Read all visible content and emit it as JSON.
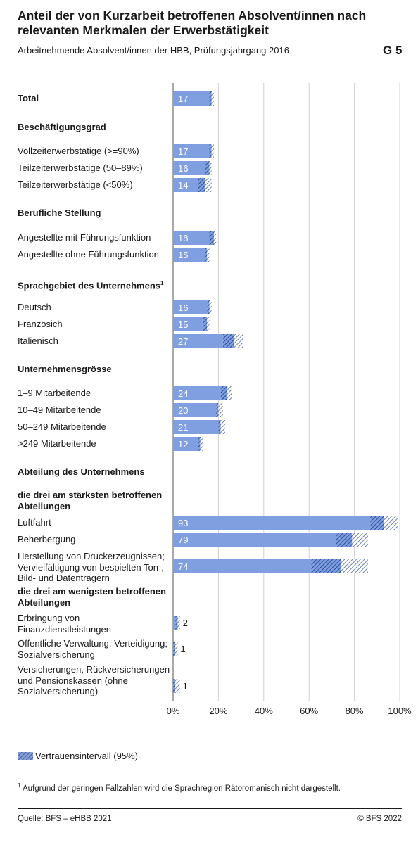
{
  "title": "Anteil der von Kurzarbeit betroffenen Absolvent/innen nach relevanten Merkmalen der Erwerbstätigkeit",
  "subtitle": "Arbeitnehmende Absolvent/innen der HBB, Prüfungsjahrgang 2016",
  "code": "G 5",
  "legend_label": "Vertrauensintervall (95%)",
  "footnote_mark": "1",
  "footnote": "Aufgrund der geringen Fallzahlen wird die Sprachregion Rätoromanisch nicht dargestellt.",
  "source": "Quelle: BFS – eHBB 2021",
  "copyright": "© BFS 2022",
  "colors": {
    "bar": "#7f9fe0",
    "ci": "#3d5fb3",
    "ci_light": "#9aa8c8",
    "grid": "#d0d0d0"
  },
  "chart_data": {
    "type": "bar",
    "orientation": "horizontal",
    "xlim": [
      0,
      100
    ],
    "x_ticks": [
      "0%",
      "20%",
      "40%",
      "60%",
      "80%",
      "100%"
    ],
    "grid": true,
    "legend": "bottom-left",
    "rows": [
      {
        "kind": "cat",
        "label": "Total",
        "value": 17,
        "ci": [
          16,
          18
        ],
        "bold": true
      },
      {
        "kind": "header",
        "label": "Beschäftigungsgrad"
      },
      {
        "kind": "cat",
        "label": "Vollzeiterwerbstätige (>=90%)",
        "value": 17,
        "ci": [
          16,
          18
        ]
      },
      {
        "kind": "cat",
        "label": "Teilzeiterwerbstätige (50–89%)",
        "value": 16,
        "ci": [
          14,
          17
        ]
      },
      {
        "kind": "cat",
        "label": "Teilzeiterwerbstätige (<50%)",
        "value": 14,
        "ci": [
          11,
          17
        ]
      },
      {
        "kind": "header",
        "label": "Berufliche Stellung"
      },
      {
        "kind": "cat",
        "label": "Angestellte mit Führungsfunktion",
        "value": 18,
        "ci": [
          16,
          19
        ]
      },
      {
        "kind": "cat",
        "label": "Angestellte ohne Führungsfunktion",
        "value": 15,
        "ci": [
          14,
          16
        ]
      },
      {
        "kind": "header",
        "label": "Sprachgebiet des Unternehmens",
        "sup": "1"
      },
      {
        "kind": "cat",
        "label": "Deutsch",
        "value": 16,
        "ci": [
          15,
          17
        ]
      },
      {
        "kind": "cat",
        "label": "Französich",
        "value": 15,
        "ci": [
          13,
          16
        ]
      },
      {
        "kind": "cat",
        "label": "Italienisch",
        "value": 27,
        "ci": [
          22,
          31
        ]
      },
      {
        "kind": "header",
        "label": "Unternehmensgrösse"
      },
      {
        "kind": "cat",
        "label": "1–9 Mitarbeitende",
        "value": 24,
        "ci": [
          21,
          26
        ]
      },
      {
        "kind": "cat",
        "label": "10–49 Mitarbeitende",
        "value": 20,
        "ci": [
          19,
          22
        ]
      },
      {
        "kind": "cat",
        "label": "50–249 Mitarbeitende",
        "value": 21,
        "ci": [
          20,
          23
        ]
      },
      {
        "kind": "cat",
        "label": ">249 Mitarbeitende",
        "value": 12,
        "ci": [
          11,
          13
        ]
      },
      {
        "kind": "header",
        "label": "Abteilung des Unternehmens"
      },
      {
        "kind": "subheader",
        "label": "die drei am stärksten betroffenen Abteilungen"
      },
      {
        "kind": "cat",
        "label": "Luftfahrt",
        "value": 93,
        "ci": [
          87,
          99
        ]
      },
      {
        "kind": "cat",
        "label": "Beherbergung",
        "value": 79,
        "ci": [
          72,
          86
        ]
      },
      {
        "kind": "cat",
        "label": "Herstellung von Druckerzeugnissen; Vervielfältigung von bespielten Ton-, Bild- und Datenträgern",
        "value": 74,
        "ci": [
          61,
          86
        ]
      },
      {
        "kind": "subheader",
        "label": "die drei am wenigsten betroffenen Abteilungen"
      },
      {
        "kind": "cat",
        "label": "Erbringung von Finanzdienstleistungen",
        "value": 2,
        "ci": [
          1,
          3
        ]
      },
      {
        "kind": "cat",
        "label": "Öffentliche Verwaltung, Verteidigung; Sozialversicherung",
        "value": 1,
        "ci": [
          0,
          2
        ]
      },
      {
        "kind": "cat",
        "label": "Versicherungen, Rückversicherungen und Pensionskassen (ohne Sozialversicherung)",
        "value": 1,
        "ci": [
          0,
          3
        ]
      }
    ]
  }
}
